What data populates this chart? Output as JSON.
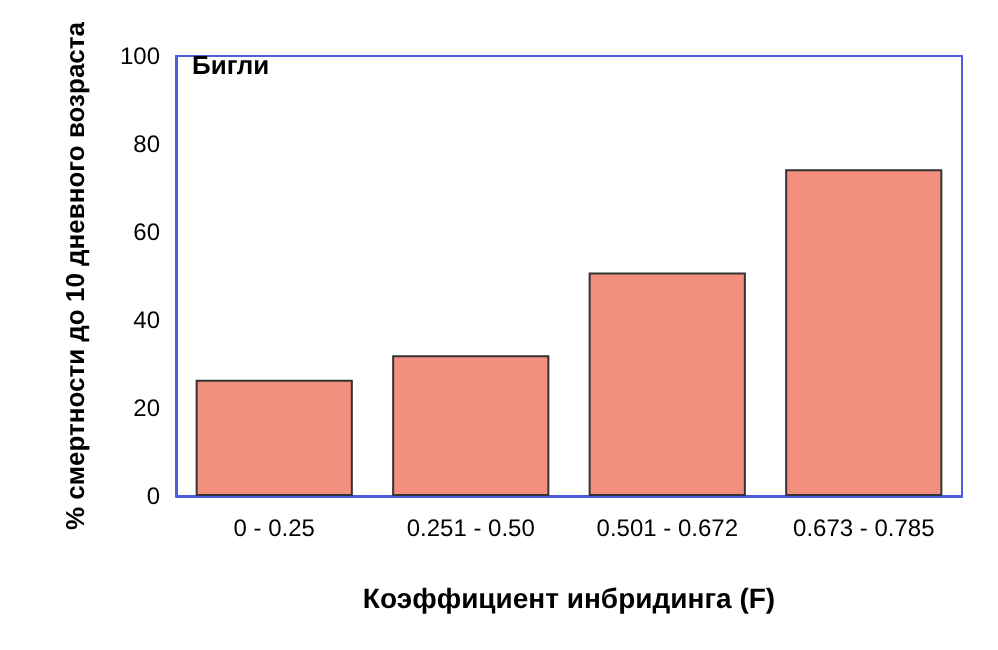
{
  "chart_data": {
    "type": "bar",
    "xlabel": "Коэффициент инбридинга (F)",
    "ylabel": "% смертности до 10 дневного возраста",
    "annotations": [
      "Бигли"
    ],
    "categories": [
      "0 - 0.25",
      "0.251 - 0.50",
      "0.501 - 0.672",
      "0.673 - 0.785"
    ],
    "values": [
      26.4,
      32,
      50.8,
      74.3
    ],
    "color": "#f28f7f",
    "ylim": [
      0,
      100
    ],
    "yticks": [
      0,
      20,
      40,
      60,
      80,
      100
    ],
    "grid": false
  }
}
